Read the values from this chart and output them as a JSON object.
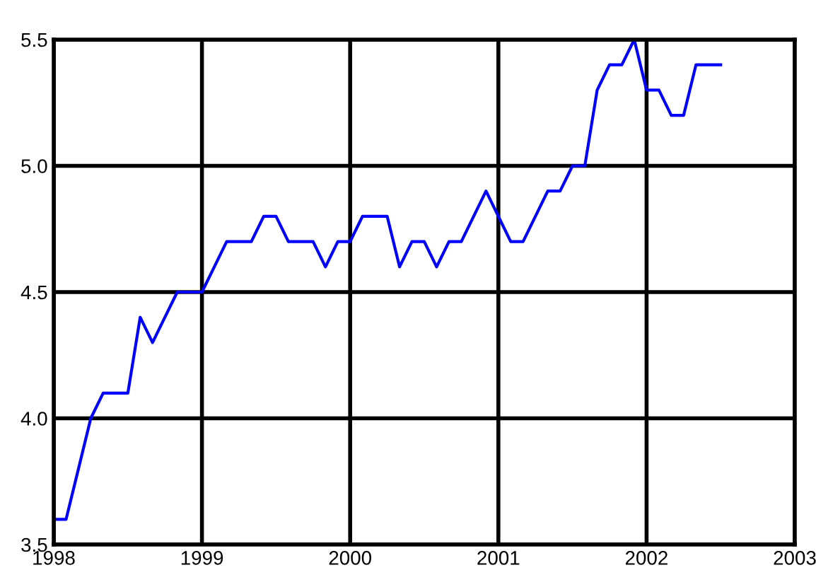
{
  "chart_data": {
    "type": "line",
    "x": [
      "1998-01",
      "1998-02",
      "1998-03",
      "1998-04",
      "1998-05",
      "1998-06",
      "1998-07",
      "1998-08",
      "1998-09",
      "1998-10",
      "1998-11",
      "1998-12",
      "1999-01",
      "1999-02",
      "1999-03",
      "1999-04",
      "1999-05",
      "1999-06",
      "1999-07",
      "1999-08",
      "1999-09",
      "1999-10",
      "1999-11",
      "1999-12",
      "2000-01",
      "2000-02",
      "2000-03",
      "2000-04",
      "2000-05",
      "2000-06",
      "2000-07",
      "2000-08",
      "2000-09",
      "2000-10",
      "2000-11",
      "2000-12",
      "2001-01",
      "2001-02",
      "2001-03",
      "2001-04",
      "2001-05",
      "2001-06",
      "2001-07",
      "2001-08",
      "2001-09",
      "2001-10",
      "2001-11",
      "2001-12",
      "2002-01",
      "2002-02",
      "2002-03",
      "2002-04",
      "2002-05",
      "2002-06",
      "2002-07"
    ],
    "series": [
      {
        "color": "#0000ff",
        "values": [
          3.6,
          3.6,
          3.8,
          4.0,
          4.1,
          4.1,
          4.1,
          4.4,
          4.3,
          4.4,
          4.5,
          4.5,
          4.5,
          4.6,
          4.7,
          4.7,
          4.7,
          4.8,
          4.8,
          4.7,
          4.7,
          4.7,
          4.6,
          4.7,
          4.7,
          4.8,
          4.8,
          4.8,
          4.6,
          4.7,
          4.7,
          4.6,
          4.7,
          4.7,
          4.8,
          4.9,
          4.8,
          4.7,
          4.7,
          4.8,
          4.9,
          4.9,
          5.0,
          5.0,
          5.3,
          5.4,
          5.4,
          5.5,
          5.3,
          5.3,
          5.2,
          5.2,
          5.4,
          5.4,
          5.4
        ]
      }
    ],
    "xlim": [
      "1998",
      "2003"
    ],
    "xticks": [
      "1998",
      "1999",
      "2000",
      "2001",
      "2002",
      "2003"
    ],
    "ylim": [
      3.5,
      5.5
    ],
    "yticks": [
      3.5,
      {
        "value": 4,
        "label": "4.0"
      },
      4.5,
      {
        "value": 5,
        "label": "5.0"
      },
      5.5
    ],
    "grid": true
  }
}
